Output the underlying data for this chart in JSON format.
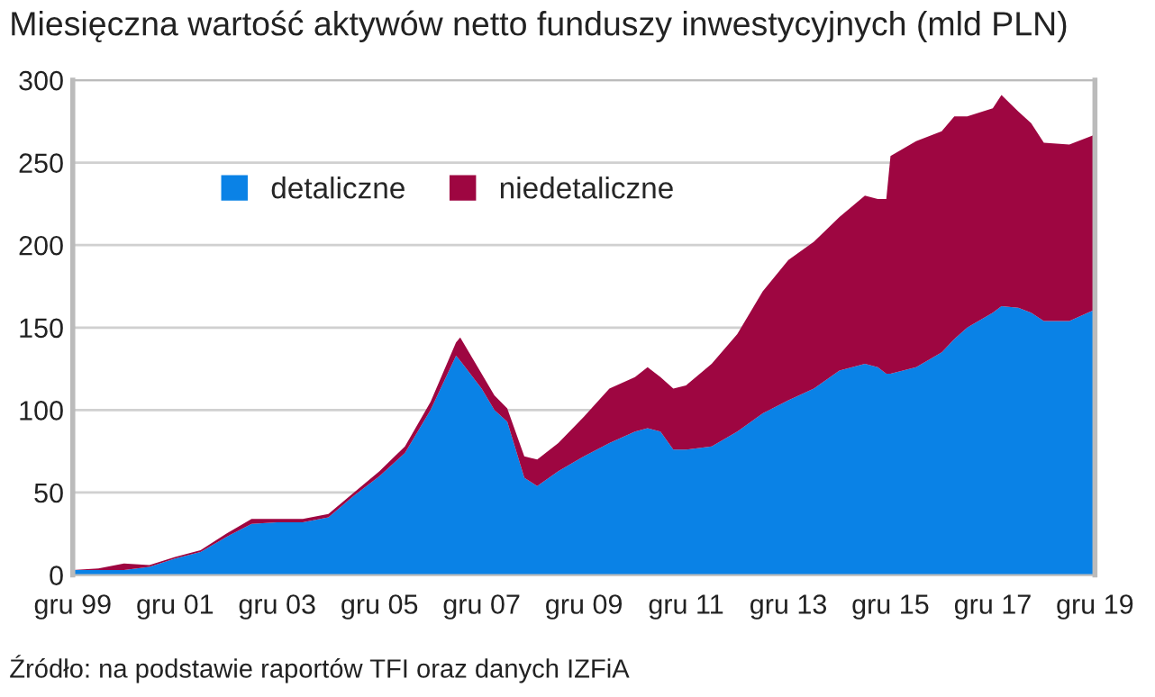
{
  "chart_data": {
    "type": "area",
    "stacked": true,
    "title": "Miesięczna wartość aktywów netto funduszy inwestycyjnych (mld PLN)",
    "annotations": [
      "Źródło: na podstawie raportów TFI oraz danych IZFiA"
    ],
    "x": [
      "1999-12",
      "2000-06",
      "2000-12",
      "2001-06",
      "2001-12",
      "2002-06",
      "2002-12",
      "2003-06",
      "2003-12",
      "2004-06",
      "2004-12",
      "2005-06",
      "2005-12",
      "2006-06",
      "2006-12",
      "2007-06",
      "2007-07",
      "2007-12",
      "2008-03",
      "2008-06",
      "2008-10",
      "2009-01",
      "2009-06",
      "2009-12",
      "2010-06",
      "2010-12",
      "2011-03",
      "2011-06",
      "2011-09",
      "2011-12",
      "2012-06",
      "2012-12",
      "2013-06",
      "2013-12",
      "2014-06",
      "2014-12",
      "2015-06",
      "2015-09",
      "2015-11",
      "2015-12",
      "2016-06",
      "2016-12",
      "2017-03",
      "2017-06",
      "2017-12",
      "2018-02",
      "2018-06",
      "2018-09",
      "2018-12",
      "2019-06",
      "2019-12"
    ],
    "series": [
      {
        "name": "detaliczne",
        "color": "#0a82e6",
        "values": [
          3,
          3,
          3,
          5,
          10,
          14,
          23,
          31,
          32,
          32,
          35,
          48,
          60,
          74,
          100,
          133,
          130,
          113,
          100,
          93,
          59,
          54,
          63,
          72,
          80,
          87,
          89,
          87,
          76,
          76,
          78,
          87,
          98,
          106,
          113,
          124,
          128,
          126,
          122,
          122,
          126,
          135,
          143,
          150,
          159,
          163,
          162,
          159,
          154,
          154,
          161
        ]
      },
      {
        "name": "niedetaliczne",
        "color": "#9e0641",
        "values": [
          0,
          1,
          4,
          1,
          1,
          1,
          2,
          3,
          2,
          2,
          2,
          2,
          3,
          4,
          5,
          8,
          14,
          9,
          9,
          8,
          13,
          16,
          17,
          24,
          33,
          33,
          37,
          33,
          37,
          39,
          50,
          59,
          74,
          85,
          89,
          93,
          102,
          102,
          106,
          132,
          137,
          134,
          135,
          128,
          124,
          128,
          119,
          115,
          108,
          107,
          106
        ]
      }
    ],
    "xlim": [
      "1999-12",
      "2019-12"
    ],
    "xticks": [
      {
        "value": "1999-12",
        "label": "gru 99"
      },
      {
        "value": "2001-12",
        "label": "gru 01"
      },
      {
        "value": "2003-12",
        "label": "gru 03"
      },
      {
        "value": "2005-12",
        "label": "gru 05"
      },
      {
        "value": "2007-12",
        "label": "gru 07"
      },
      {
        "value": "2009-12",
        "label": "gru 09"
      },
      {
        "value": "2011-12",
        "label": "gru 11"
      },
      {
        "value": "2013-12",
        "label": "gru 13"
      },
      {
        "value": "2015-12",
        "label": "gru 15"
      },
      {
        "value": "2017-12",
        "label": "gru 17"
      },
      {
        "value": "2019-12",
        "label": "gru 19"
      }
    ],
    "ylim": [
      0,
      300
    ],
    "yticks": [
      0,
      50,
      100,
      150,
      200,
      250,
      300
    ],
    "grid": "y",
    "legend": "top left"
  }
}
